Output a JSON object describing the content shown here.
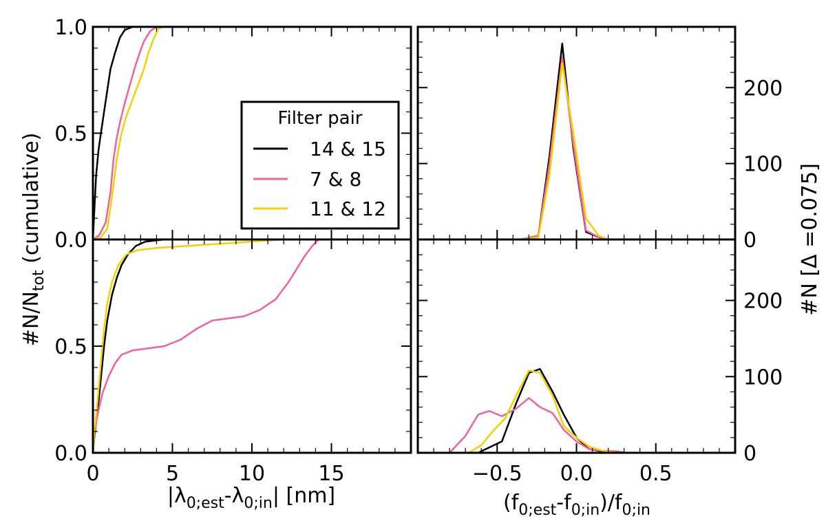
{
  "chart_data": [
    {
      "type": "line",
      "panel": "top-left",
      "cumulative": true,
      "xlim": [
        0,
        20
      ],
      "ylim": [
        0,
        1
      ],
      "xticks": [
        0,
        5,
        10,
        15
      ],
      "yticks": [
        "0.0",
        "0.5",
        "1.0"
      ],
      "series": [
        {
          "name": "14 & 15",
          "color": "#000000",
          "points": [
            [
              0,
              0
            ],
            [
              0.08,
              0.12
            ],
            [
              0.2,
              0.3
            ],
            [
              0.35,
              0.42
            ],
            [
              0.5,
              0.5
            ],
            [
              0.7,
              0.6
            ],
            [
              0.9,
              0.7
            ],
            [
              1.1,
              0.8
            ],
            [
              1.4,
              0.88
            ],
            [
              1.7,
              0.95
            ],
            [
              2.0,
              0.985
            ],
            [
              2.5,
              1.0
            ],
            [
              3.0,
              1.0
            ]
          ]
        },
        {
          "name": "7 & 8",
          "color": "#f0609e",
          "points": [
            [
              0,
              0
            ],
            [
              0.4,
              0.02
            ],
            [
              0.8,
              0.08
            ],
            [
              1.1,
              0.22
            ],
            [
              1.3,
              0.38
            ],
            [
              1.5,
              0.48
            ],
            [
              1.7,
              0.55
            ],
            [
              2.0,
              0.64
            ],
            [
              2.3,
              0.72
            ],
            [
              2.6,
              0.8
            ],
            [
              2.9,
              0.87
            ],
            [
              3.2,
              0.93
            ],
            [
              3.6,
              0.98
            ],
            [
              4.0,
              1.0
            ]
          ]
        },
        {
          "name": "11 & 12",
          "color": "#f5d000",
          "points": [
            [
              0,
              0
            ],
            [
              0.5,
              0.01
            ],
            [
              0.9,
              0.05
            ],
            [
              1.2,
              0.2
            ],
            [
              1.5,
              0.38
            ],
            [
              1.8,
              0.5
            ],
            [
              2.1,
              0.58
            ],
            [
              2.5,
              0.66
            ],
            [
              2.9,
              0.74
            ],
            [
              3.2,
              0.8
            ],
            [
              3.5,
              0.88
            ],
            [
              3.8,
              0.94
            ],
            [
              4.1,
              0.99
            ],
            [
              4.4,
              1.0
            ]
          ]
        }
      ]
    },
    {
      "type": "line",
      "panel": "bottom-left",
      "cumulative": true,
      "xlim": [
        0,
        20
      ],
      "ylim": [
        0,
        1
      ],
      "xticks": [
        0,
        5,
        10,
        15
      ],
      "yticks": [
        "0.0",
        "0.5"
      ],
      "series": [
        {
          "name": "14 & 15",
          "color": "#000000",
          "points": [
            [
              0,
              0
            ],
            [
              0.1,
              0.08
            ],
            [
              0.3,
              0.2
            ],
            [
              0.5,
              0.35
            ],
            [
              0.7,
              0.5
            ],
            [
              0.9,
              0.62
            ],
            [
              1.2,
              0.74
            ],
            [
              1.5,
              0.82
            ],
            [
              1.8,
              0.88
            ],
            [
              2.2,
              0.93
            ],
            [
              2.7,
              0.97
            ],
            [
              3.3,
              0.99
            ],
            [
              4.5,
              1.0
            ],
            [
              5.5,
              1.0
            ]
          ]
        },
        {
          "name": "7 & 8",
          "color": "#f0609e",
          "points": [
            [
              0,
              0
            ],
            [
              0.1,
              0.1
            ],
            [
              0.3,
              0.18
            ],
            [
              0.6,
              0.28
            ],
            [
              1.0,
              0.36
            ],
            [
              1.4,
              0.42
            ],
            [
              1.8,
              0.46
            ],
            [
              2.5,
              0.48
            ],
            [
              3.5,
              0.49
            ],
            [
              4.5,
              0.5
            ],
            [
              5.5,
              0.53
            ],
            [
              6.5,
              0.58
            ],
            [
              7.5,
              0.62
            ],
            [
              8.5,
              0.63
            ],
            [
              9.5,
              0.64
            ],
            [
              10.5,
              0.67
            ],
            [
              11.5,
              0.72
            ],
            [
              12.3,
              0.8
            ],
            [
              12.8,
              0.86
            ],
            [
              13.3,
              0.92
            ],
            [
              13.8,
              0.97
            ],
            [
              14.2,
              1.0
            ]
          ]
        },
        {
          "name": "11 & 12",
          "color": "#f5d000",
          "points": [
            [
              0,
              0
            ],
            [
              0.1,
              0.1
            ],
            [
              0.3,
              0.25
            ],
            [
              0.5,
              0.42
            ],
            [
              0.7,
              0.58
            ],
            [
              0.9,
              0.7
            ],
            [
              1.2,
              0.8
            ],
            [
              1.6,
              0.88
            ],
            [
              2.1,
              0.93
            ],
            [
              2.8,
              0.95
            ],
            [
              4.0,
              0.96
            ],
            [
              6.0,
              0.97
            ],
            [
              8.0,
              0.98
            ],
            [
              10.0,
              0.99
            ],
            [
              12.0,
              1.0
            ],
            [
              13.0,
              1.0
            ]
          ]
        }
      ]
    },
    {
      "type": "line",
      "panel": "top-right",
      "xlim": [
        -1,
        1
      ],
      "ylim": [
        0,
        280
      ],
      "xticks": [
        -0.5,
        0.0,
        0.5
      ],
      "yticks": [
        0,
        100,
        200
      ],
      "series": [
        {
          "name": "14 & 15",
          "color": "#000000",
          "points": [
            [
              -0.35,
              0
            ],
            [
              -0.24,
              5
            ],
            [
              -0.17,
              110
            ],
            [
              -0.09,
              258
            ],
            [
              -0.02,
              120
            ],
            [
              0.06,
              10
            ],
            [
              0.14,
              3
            ],
            [
              0.2,
              0
            ]
          ]
        },
        {
          "name": "7 & 8",
          "color": "#f0609e",
          "points": [
            [
              -0.35,
              0
            ],
            [
              -0.24,
              5
            ],
            [
              -0.17,
              100
            ],
            [
              -0.09,
              240
            ],
            [
              -0.02,
              125
            ],
            [
              0.06,
              12
            ],
            [
              0.14,
              3
            ],
            [
              0.2,
              0
            ]
          ]
        },
        {
          "name": "11 & 12",
          "color": "#f5d000",
          "points": [
            [
              -0.35,
              0
            ],
            [
              -0.24,
              3
            ],
            [
              -0.17,
              85
            ],
            [
              -0.09,
              232
            ],
            [
              -0.02,
              140
            ],
            [
              0.06,
              28
            ],
            [
              0.14,
              5
            ],
            [
              0.2,
              0
            ]
          ]
        }
      ]
    },
    {
      "type": "line",
      "panel": "bottom-right",
      "xlim": [
        -1,
        1
      ],
      "ylim": [
        0,
        280
      ],
      "xticks": [
        -0.5,
        0.0,
        0.5
      ],
      "yticks": [
        0,
        100,
        200
      ],
      "series": [
        {
          "name": "14 & 15",
          "color": "#000000",
          "points": [
            [
              -0.62,
              0
            ],
            [
              -0.47,
              15
            ],
            [
              -0.38,
              65
            ],
            [
              -0.3,
              105
            ],
            [
              -0.23,
              110
            ],
            [
              -0.15,
              80
            ],
            [
              -0.08,
              50
            ],
            [
              0.0,
              20
            ],
            [
              0.08,
              5
            ],
            [
              0.16,
              2
            ],
            [
              0.25,
              0
            ]
          ]
        },
        {
          "name": "7 & 8",
          "color": "#f0609e",
          "points": [
            [
              -0.8,
              0
            ],
            [
              -0.7,
              22
            ],
            [
              -0.62,
              50
            ],
            [
              -0.55,
              55
            ],
            [
              -0.47,
              48
            ],
            [
              -0.38,
              58
            ],
            [
              -0.3,
              72
            ],
            [
              -0.23,
              60
            ],
            [
              -0.15,
              52
            ],
            [
              -0.08,
              30
            ],
            [
              0.0,
              15
            ],
            [
              0.08,
              5
            ],
            [
              0.16,
              3
            ],
            [
              0.25,
              2
            ],
            [
              0.32,
              0
            ]
          ]
        },
        {
          "name": "11 & 12",
          "color": "#f5d000",
          "points": [
            [
              -0.68,
              0
            ],
            [
              -0.6,
              10
            ],
            [
              -0.52,
              30
            ],
            [
              -0.45,
              45
            ],
            [
              -0.38,
              75
            ],
            [
              -0.3,
              108
            ],
            [
              -0.23,
              105
            ],
            [
              -0.15,
              75
            ],
            [
              -0.08,
              35
            ],
            [
              0.0,
              20
            ],
            [
              0.08,
              8
            ],
            [
              0.16,
              3
            ],
            [
              0.25,
              0
            ]
          ]
        }
      ]
    }
  ],
  "axes": {
    "left_ylabel": "#N/N",
    "left_ylabel_sub": "tot",
    "left_ylabel_tail": " (cumulative)",
    "right_ylabel": "#N [Δ =0.075]",
    "left_xlabel": {
      "pre": "|λ",
      "sub1": "0;est",
      "mid": "-λ",
      "sub2": "0;in",
      "post": "| [nm]"
    },
    "right_xlabel": {
      "pre": "(f",
      "sub1": "0;est",
      "mid": "-f",
      "sub2": "0;in",
      "mid2": ")/f",
      "sub3": "0;in"
    }
  },
  "legend": {
    "title": "Filter pair",
    "placement": "inside top-left panel, lower-right",
    "entries": [
      {
        "label": "14 & 15",
        "color": "#000000"
      },
      {
        "label": "7 & 8",
        "color": "#f0609e"
      },
      {
        "label": "11 & 12",
        "color": "#f5d000"
      }
    ]
  }
}
